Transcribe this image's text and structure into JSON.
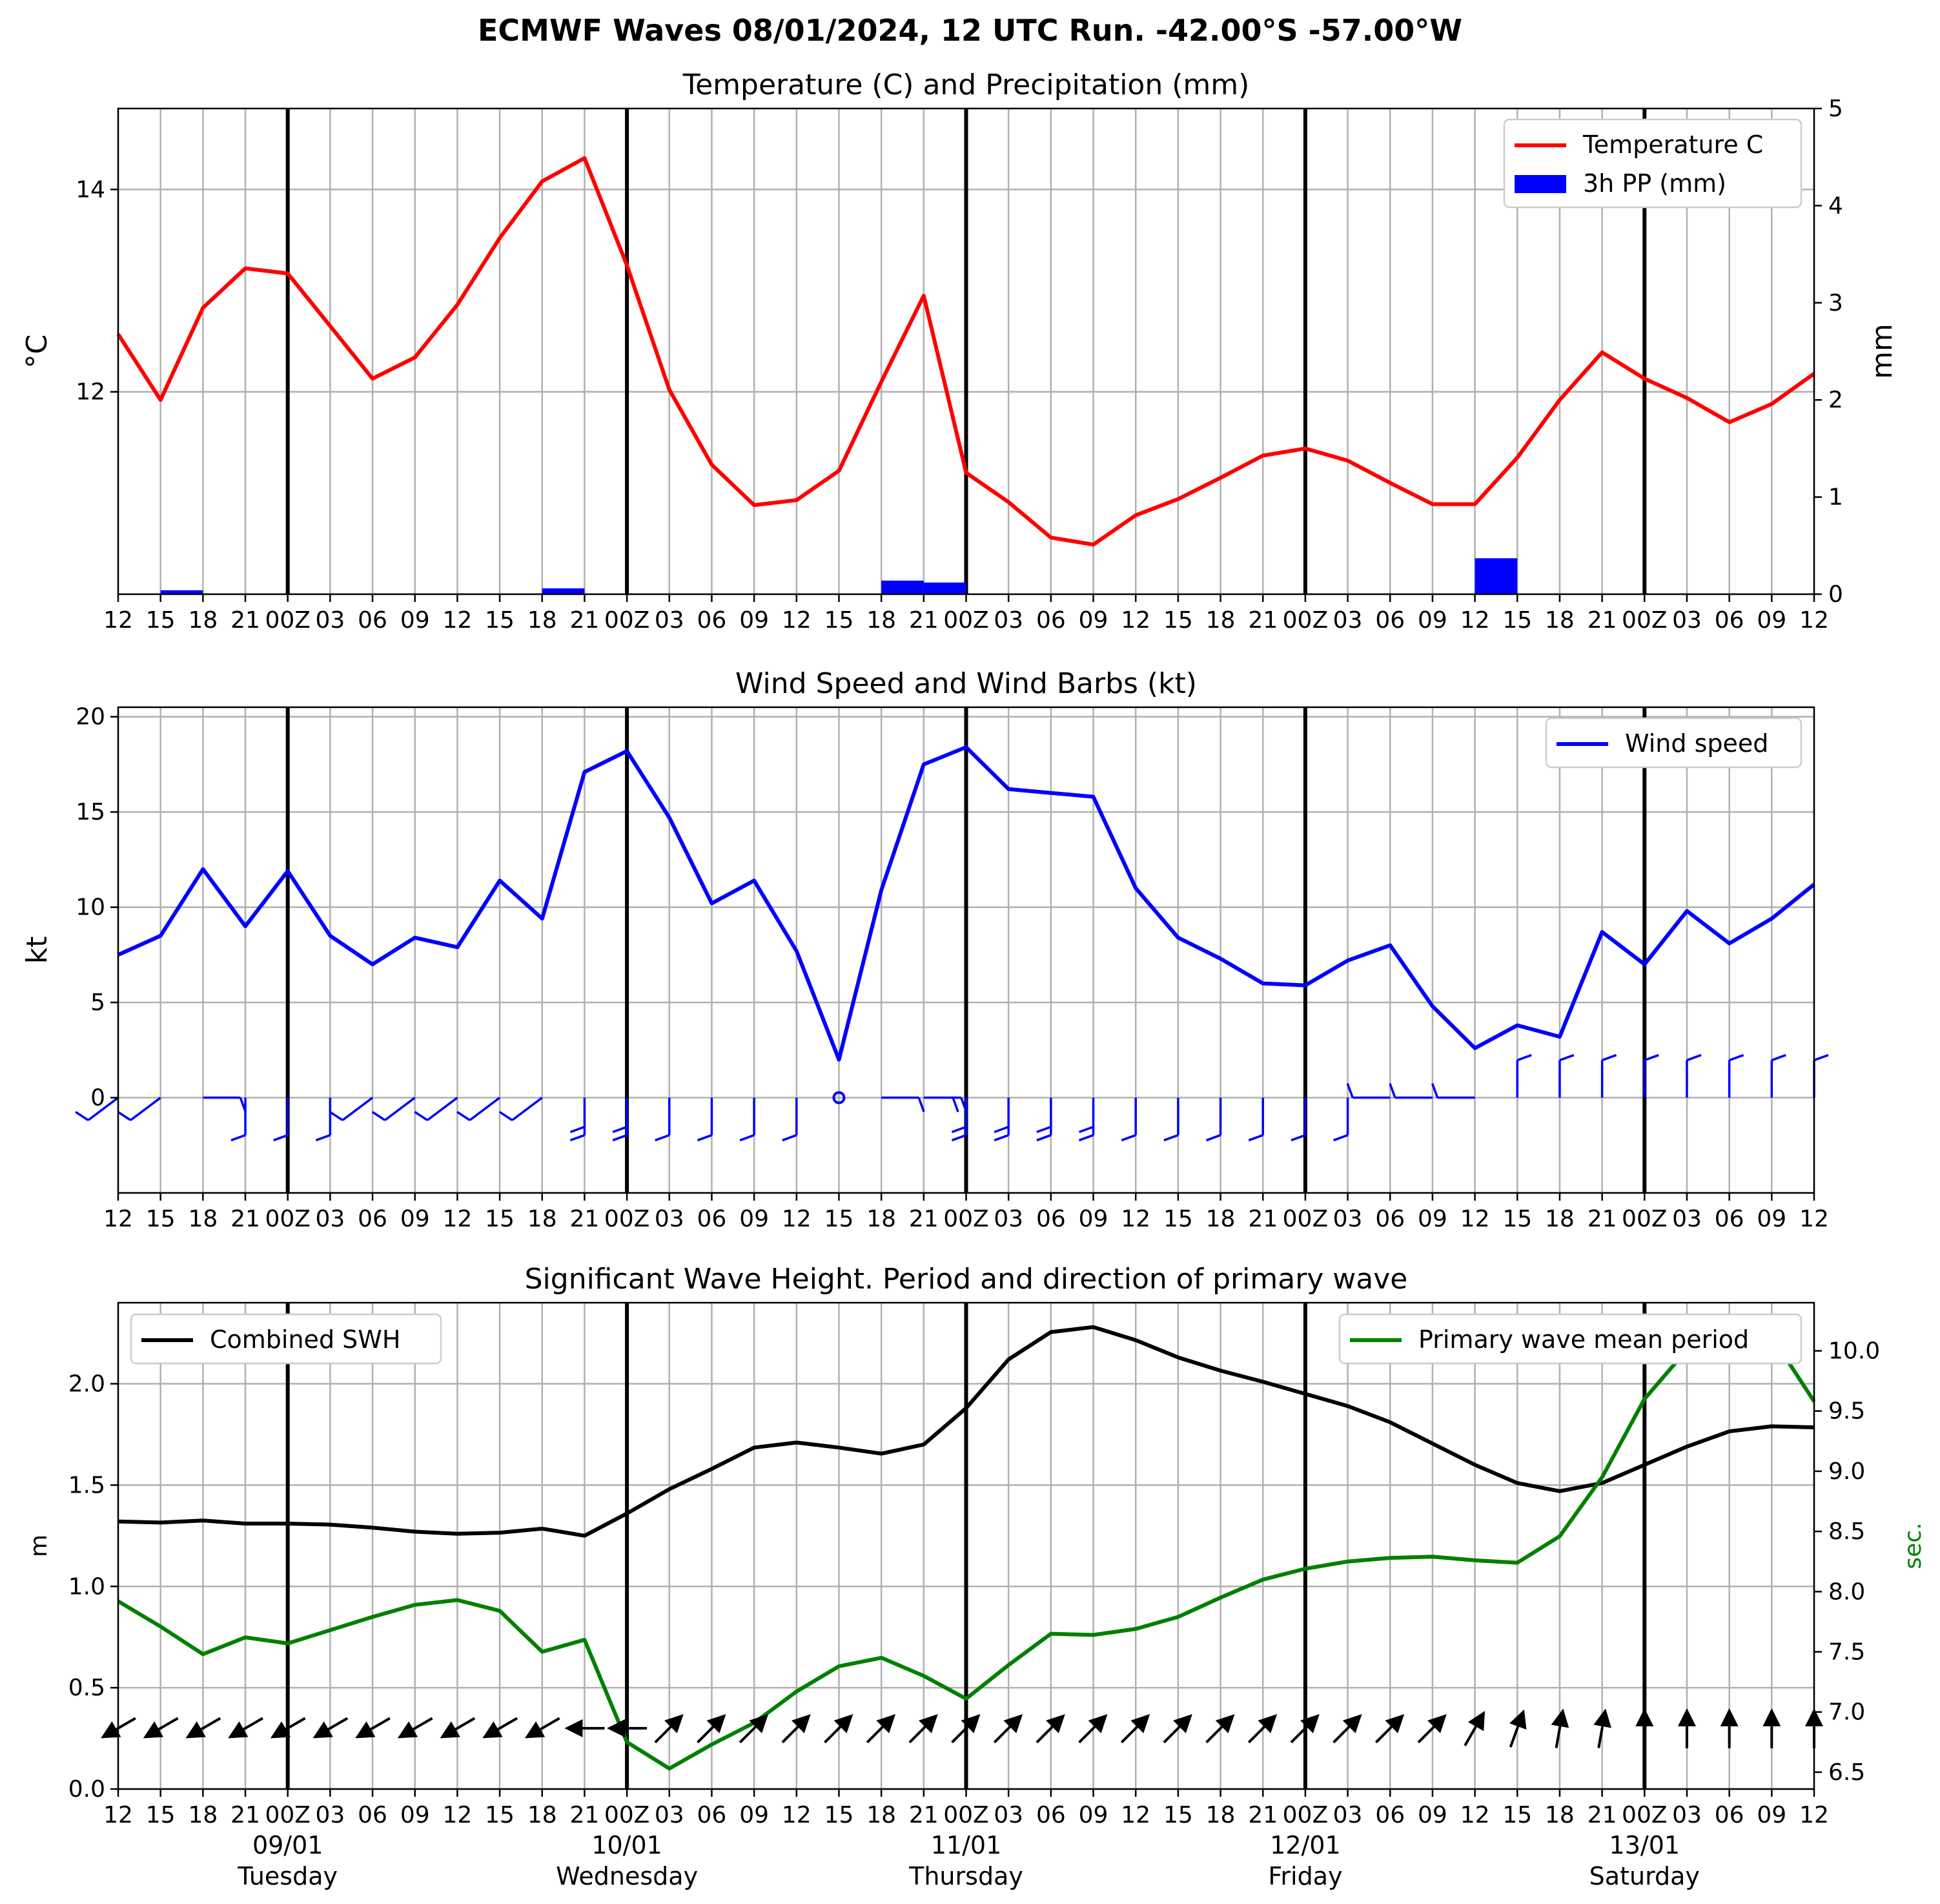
{
  "suptitle": "ECMWF Waves 08/01/2024, 12 UTC Run. -42.00°S -57.00°W",
  "x_tick_labels": [
    "12",
    "15",
    "18",
    "21",
    "00Z",
    "03",
    "06",
    "09",
    "12",
    "15",
    "18",
    "21",
    "00Z",
    "03",
    "06",
    "09",
    "12",
    "15",
    "18",
    "21",
    "00Z",
    "03",
    "06",
    "09",
    "12",
    "15",
    "18",
    "21",
    "00Z",
    "03",
    "06",
    "09",
    "12",
    "15",
    "18",
    "21",
    "00Z",
    "03",
    "06",
    "09",
    "12"
  ],
  "x_day_labels": [
    {
      "date": "09/01",
      "day": "Tuesday"
    },
    {
      "date": "10/01",
      "day": "Wednesday"
    },
    {
      "date": "11/01",
      "day": "Thursday"
    },
    {
      "date": "12/01",
      "day": "Friday"
    },
    {
      "date": "13/01",
      "day": "Saturday"
    }
  ],
  "colors": {
    "temperature": "#ff0000",
    "precip": "#0000ff",
    "wind": "#0000ff",
    "swh": "#000000",
    "period": "#008000",
    "grid": "#b0b0b0"
  },
  "chart_data": [
    {
      "type": "line",
      "title": "Temperature (C) and Precipitation (mm)",
      "ylabel": "$^\\circ$C",
      "ylabel_right": "mm",
      "ylim": [
        10.0,
        14.8
      ],
      "ylim_right": [
        0,
        5
      ],
      "y_ticks": [
        12,
        14
      ],
      "y_ticks_right": [
        0,
        1,
        2,
        3,
        4,
        5
      ],
      "legend": "top-right",
      "grid": true,
      "series": [
        {
          "name": "Temperature C",
          "values": [
            12.57,
            11.92,
            12.83,
            13.22,
            13.17,
            12.65,
            12.13,
            12.34,
            12.86,
            13.52,
            14.08,
            14.31,
            13.25,
            12.02,
            11.28,
            10.88,
            10.93,
            11.22,
            12.1,
            12.95,
            11.2,
            10.91,
            10.56,
            10.49,
            10.78,
            10.94,
            11.15,
            11.37,
            11.44,
            11.32,
            11.1,
            10.89,
            10.89,
            11.35,
            11.92,
            12.39,
            12.13,
            11.94,
            11.7,
            11.88,
            12.18
          ]
        },
        {
          "name": "3h PP (mm)",
          "type": "bar",
          "bars": [
            {
              "start": 1,
              "value": 0.04
            },
            {
              "start": 10,
              "value": 0.06
            },
            {
              "start": 18,
              "value": 0.14
            },
            {
              "start": 19,
              "value": 0.12
            },
            {
              "start": 32,
              "value": 0.37
            }
          ]
        }
      ]
    },
    {
      "type": "line",
      "title": "Wind Speed and Wind Barbs (kt)",
      "ylabel": "kt",
      "ylim": [
        -5,
        20.5
      ],
      "y_ticks": [
        0,
        5,
        10,
        15,
        20
      ],
      "legend": "top-right",
      "grid": true,
      "series": [
        {
          "name": "Wind speed",
          "values": [
            7.5,
            8.5,
            12.0,
            9.0,
            11.9,
            8.5,
            7.0,
            8.4,
            7.9,
            11.4,
            9.4,
            17.1,
            18.2,
            14.7,
            10.2,
            11.4,
            7.7,
            2.0,
            10.9,
            17.5,
            18.4,
            16.2,
            16.0,
            15.8,
            11.0,
            8.4,
            7.3,
            6.0,
            5.9,
            7.2,
            8.0,
            4.8,
            2.6,
            3.8,
            3.2,
            8.7,
            7.0,
            9.8,
            8.1,
            9.4,
            11.2
          ]
        }
      ],
      "barb_directions": [
        "SW",
        "SW",
        "E",
        "N",
        "N",
        "N",
        "SW",
        "SW",
        "SW",
        "SW",
        "SW",
        "N",
        "N",
        "N",
        "N",
        "N",
        "N",
        "calm",
        "E",
        "E",
        "N",
        "N",
        "N",
        "N",
        "N",
        "N",
        "N",
        "N",
        "N",
        "N",
        "W",
        "W",
        "W",
        "S",
        "S",
        "S",
        "S",
        "S",
        "S",
        "S",
        "S"
      ]
    },
    {
      "type": "line",
      "title": "Significant Wave Height. Period and direction of primary wave",
      "ylabel": "m",
      "ylabel_right": "sec.",
      "ylim": [
        0,
        2.4
      ],
      "ylim_right": [
        6.36,
        10.4
      ],
      "y_ticks": [
        0.0,
        0.5,
        1.0,
        1.5,
        2.0
      ],
      "y_ticks_right": [
        6.5,
        7.0,
        7.5,
        8.0,
        8.5,
        9.0,
        9.5,
        10.0
      ],
      "grid": true,
      "legend": "top-left / top-right",
      "series": [
        {
          "name": "Combined SWH",
          "values": [
            1.32,
            1.315,
            1.325,
            1.31,
            1.31,
            1.305,
            1.29,
            1.27,
            1.26,
            1.265,
            1.285,
            1.25,
            1.36,
            1.48,
            1.58,
            1.685,
            1.71,
            1.685,
            1.655,
            1.7,
            1.88,
            2.12,
            2.255,
            2.28,
            2.215,
            2.13,
            2.065,
            2.01,
            1.95,
            1.89,
            1.81,
            1.705,
            1.6,
            1.51,
            1.47,
            1.51,
            1.6,
            1.69,
            1.765,
            1.79,
            1.785
          ]
        },
        {
          "name": "Primary wave mean period",
          "axis": "right",
          "values": [
            7.92,
            7.71,
            7.48,
            7.62,
            7.57,
            7.68,
            7.79,
            7.89,
            7.93,
            7.84,
            7.5,
            7.6,
            6.75,
            6.53,
            6.73,
            6.91,
            7.17,
            7.38,
            7.45,
            7.3,
            7.11,
            7.39,
            7.65,
            7.64,
            7.69,
            7.79,
            7.95,
            8.1,
            8.19,
            8.25,
            8.28,
            8.29,
            8.26,
            8.24,
            8.46,
            8.95,
            9.6,
            10.01,
            10.2,
            10.12,
            9.58
          ]
        }
      ],
      "arrow_directions_deg": [
        240,
        240,
        240,
        240,
        240,
        240,
        240,
        240,
        240,
        240,
        240,
        270,
        270,
        45,
        45,
        45,
        45,
        45,
        45,
        45,
        45,
        45,
        45,
        45,
        45,
        45,
        45,
        45,
        45,
        45,
        45,
        45,
        30,
        20,
        10,
        10,
        0,
        0,
        0,
        0,
        0
      ]
    }
  ]
}
